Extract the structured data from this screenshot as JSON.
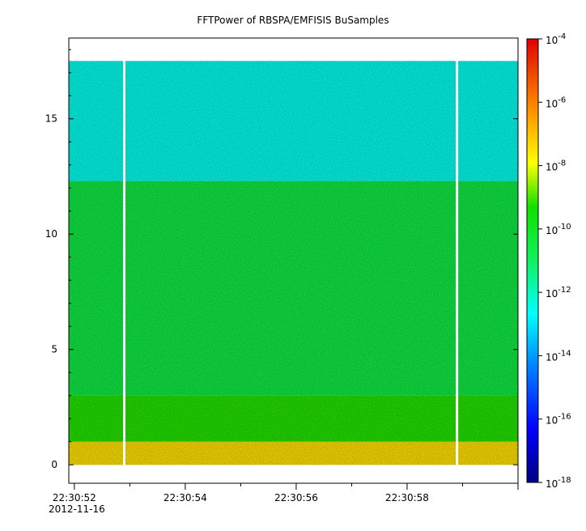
{
  "chart_data": {
    "type": "heatmap",
    "title": "FFTPower of RBSPA/EMFISIS  BuSamples",
    "xlabel": "",
    "ylabel": "",
    "x_range": [
      "22:30:51.9",
      "22:31:00"
    ],
    "x_ticks": [
      "22:30:52",
      "22:30:54",
      "22:30:56",
      "22:30:58"
    ],
    "x_date_label": "2012-11-16",
    "y_range": [
      -0.8,
      18.5
    ],
    "y_ticks": [
      "0",
      "5",
      "10",
      "15"
    ],
    "data_y_max": 17.5,
    "colorbar": {
      "scale": "log",
      "range": [
        "1e-18",
        "1e-4"
      ],
      "ticks": [
        {
          "base": "10",
          "exp": "-4"
        },
        {
          "base": "10",
          "exp": "-6"
        },
        {
          "base": "10",
          "exp": "-8"
        },
        {
          "base": "10",
          "exp": "-10"
        },
        {
          "base": "10",
          "exp": "-12"
        },
        {
          "base": "10",
          "exp": "-14"
        },
        {
          "base": "10",
          "exp": "-16"
        },
        {
          "base": "10",
          "exp": "-18"
        }
      ]
    },
    "data_gaps": [
      "22:30:52.9",
      "22:30:58.9"
    ],
    "bands": [
      {
        "freq_range": [
          12.3,
          17.5
        ],
        "log_power": -12.5
      },
      {
        "freq_range": [
          3.0,
          12.3
        ],
        "log_power": -10.5
      },
      {
        "freq_range": [
          1.0,
          3.0
        ],
        "log_power": -9.2
      },
      {
        "freq_range": [
          0.0,
          1.0
        ],
        "log_power": -7.5
      }
    ],
    "grid": false
  }
}
